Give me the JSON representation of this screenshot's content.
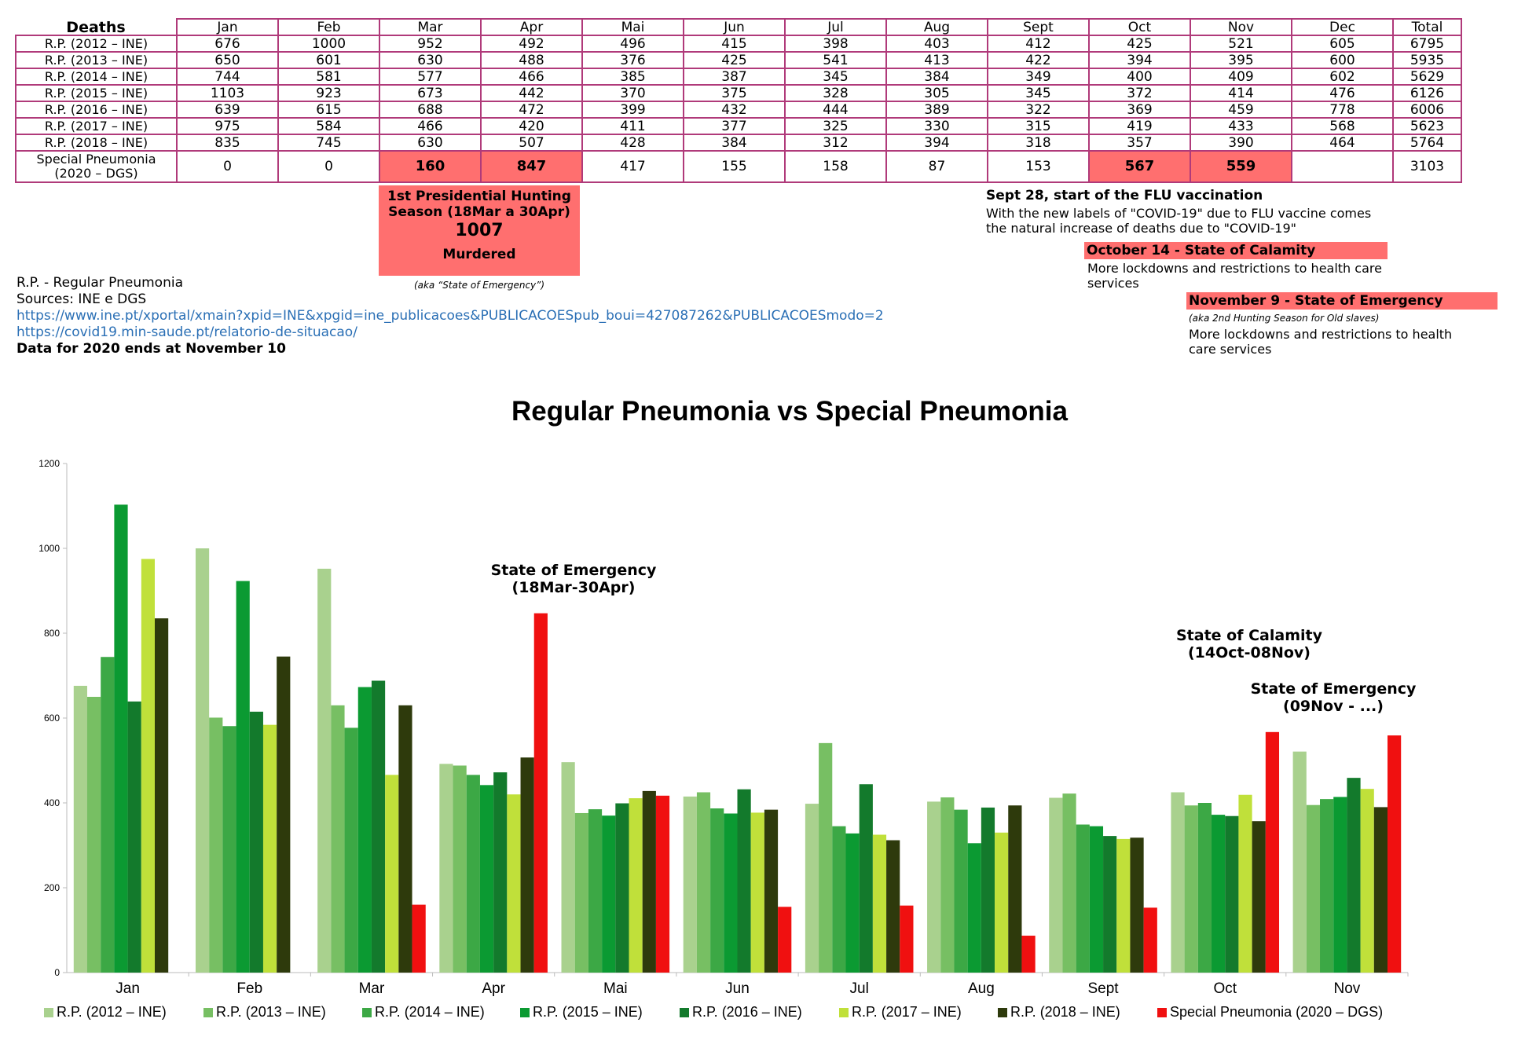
{
  "table": {
    "corner": "Deaths",
    "months": [
      "Jan",
      "Feb",
      "Mar",
      "Apr",
      "Mai",
      "Jun",
      "Jul",
      "Aug",
      "Sept",
      "Oct",
      "Nov",
      "Dec",
      "Total"
    ],
    "rows": [
      {
        "label": "R.P. (2012 – INE)",
        "cells": [
          "676",
          "1000",
          "952",
          "492",
          "496",
          "415",
          "398",
          "403",
          "412",
          "425",
          "521",
          "605",
          "6795"
        ]
      },
      {
        "label": "R.P. (2013 – INE)",
        "cells": [
          "650",
          "601",
          "630",
          "488",
          "376",
          "425",
          "541",
          "413",
          "422",
          "394",
          "395",
          "600",
          "5935"
        ]
      },
      {
        "label": "R.P. (2014 – INE)",
        "cells": [
          "744",
          "581",
          "577",
          "466",
          "385",
          "387",
          "345",
          "384",
          "349",
          "400",
          "409",
          "602",
          "5629"
        ]
      },
      {
        "label": "R.P. (2015 – INE)",
        "cells": [
          "1103",
          "923",
          "673",
          "442",
          "370",
          "375",
          "328",
          "305",
          "345",
          "372",
          "414",
          "476",
          "6126"
        ]
      },
      {
        "label": "R.P. (2016 – INE)",
        "cells": [
          "639",
          "615",
          "688",
          "472",
          "399",
          "432",
          "444",
          "389",
          "322",
          "369",
          "459",
          "778",
          "6006"
        ]
      },
      {
        "label": "R.P. (2017 – INE)",
        "cells": [
          "975",
          "584",
          "466",
          "420",
          "411",
          "377",
          "325",
          "330",
          "315",
          "419",
          "433",
          "568",
          "5623"
        ]
      },
      {
        "label": "R.P. (2018 – INE)",
        "cells": [
          "835",
          "745",
          "630",
          "507",
          "428",
          "384",
          "312",
          "394",
          "318",
          "357",
          "390",
          "464",
          "5764"
        ]
      }
    ],
    "special": {
      "label_line1": "Special Pneumonia",
      "label_line2": "(2020 – DGS)",
      "cells": [
        "0",
        "0",
        "160",
        "847",
        "417",
        "155",
        "158",
        "87",
        "153",
        "567",
        "559",
        "",
        "3103"
      ]
    }
  },
  "notes": {
    "hunting_line1": "1st Presidential Hunting",
    "hunting_line2": "Season (18Mar a 30Apr)",
    "hunting_total": "1007",
    "hunting_word": "Murdered",
    "hunting_aka": "(aka “State of Emergency”)",
    "flu_title": "Sept 28, start of the FLU vaccination",
    "flu_text1": "With the new labels of \"COVID-19\" due to FLU vaccine comes",
    "flu_text2": "the natural increase of deaths due to \"COVID-19\"",
    "calamity_title": "October 14 - State of Calamity",
    "calamity_text1": "More lockdowns and restrictions to health care",
    "calamity_text2": "services",
    "emergency_title": "November 9 - State of Emergency",
    "emergency_aka": "(aka 2nd Hunting Season for Old slaves)",
    "emergency_text1": "More lockdowns and restrictions to health",
    "emergency_text2": "care services",
    "rp_def": "R.P. - Regular Pneumonia",
    "sources": "Sources: INE e DGS",
    "link1": "https://www.ine.pt/xportal/xmain?xpid=INE&xpgid=ine_publicacoes&PUBLICACOESpub_boui=427087262&PUBLICACOESmodo=2",
    "link2": "https://covid19.min-saude.pt/relatorio-de-situacao/",
    "data_end": "Data for 2020 ends at November 10"
  },
  "colors": {
    "table_border": "#b03a7a",
    "highlight": "#ff6f6f",
    "link": "#2a6fb5"
  },
  "chart_data": {
    "type": "bar",
    "title": "Regular Pneumonia vs Special Pneumonia",
    "xlabel": "",
    "ylabel": "",
    "ylim": [
      0,
      1200
    ],
    "yticks": [
      0,
      200,
      400,
      600,
      800,
      1000,
      1200
    ],
    "grid": false,
    "legend": "bottom",
    "categories": [
      "Jan",
      "Feb",
      "Mar",
      "Apr",
      "Mai",
      "Jun",
      "Jul",
      "Aug",
      "Sept",
      "Oct",
      "Nov"
    ],
    "series": [
      {
        "name": "R.P. (2012 – INE)",
        "color": "#a9d18e",
        "values": [
          676,
          1000,
          952,
          492,
          496,
          415,
          398,
          403,
          412,
          425,
          521
        ]
      },
      {
        "name": "R.P. (2013 – INE)",
        "color": "#77bf63",
        "values": [
          650,
          601,
          630,
          488,
          376,
          425,
          541,
          413,
          422,
          394,
          395
        ]
      },
      {
        "name": "R.P. (2014 – INE)",
        "color": "#3ca845",
        "values": [
          744,
          581,
          577,
          466,
          385,
          387,
          345,
          384,
          349,
          400,
          409
        ]
      },
      {
        "name": "R.P. (2015 – INE)",
        "color": "#0b9a32",
        "values": [
          1103,
          923,
          673,
          442,
          370,
          375,
          328,
          305,
          345,
          372,
          414
        ]
      },
      {
        "name": "R.P. (2016 – INE)",
        "color": "#137a2c",
        "values": [
          639,
          615,
          688,
          472,
          399,
          432,
          444,
          389,
          322,
          369,
          459
        ]
      },
      {
        "name": "R.P. (2017 – INE)",
        "color": "#c0e03a",
        "values": [
          975,
          584,
          466,
          420,
          411,
          377,
          325,
          330,
          315,
          419,
          433
        ]
      },
      {
        "name": "R.P. (2018 – INE)",
        "color": "#2e3a0c",
        "values": [
          835,
          745,
          630,
          507,
          428,
          384,
          312,
          394,
          318,
          357,
          390
        ]
      },
      {
        "name": "Special Pneumonia (2020 – DGS)",
        "color": "#f01010",
        "values": [
          0,
          0,
          160,
          847,
          417,
          155,
          158,
          87,
          153,
          567,
          559
        ]
      }
    ],
    "annotations": [
      {
        "line1": "State of Emergency",
        "line2": "(18Mar-30Apr)"
      },
      {
        "line1": "State of Calamity",
        "line2": "(14Oct-08Nov)"
      },
      {
        "line1": "State of Emergency",
        "line2": "(09Nov - ...)"
      }
    ]
  }
}
